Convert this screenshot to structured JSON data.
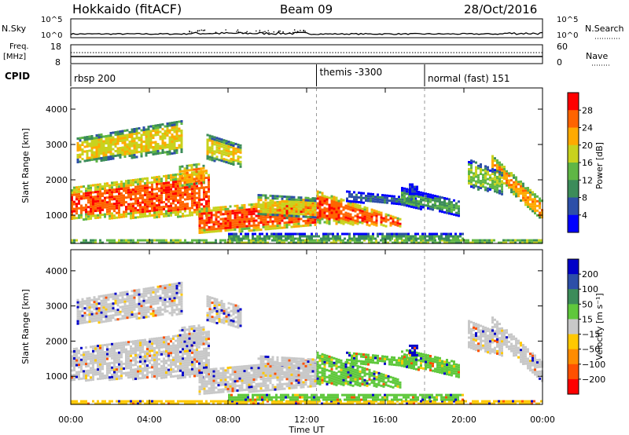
{
  "header": {
    "station": "Hokkaido (fitACF)",
    "beam": "Beam 09",
    "date": "28/Oct/2016"
  },
  "noise_panel": {
    "left_label": "N.Sky",
    "right_label": "N.Search",
    "left_ticks": [
      "10^5",
      "10^0"
    ],
    "right_ticks": [
      "10^5",
      "10^0"
    ]
  },
  "freq_panel": {
    "left_label_line1": "Freq.",
    "left_label_line2": "[MHz]",
    "right_label": "Nave",
    "left_ticks": [
      "18",
      "8"
    ],
    "right_ticks": [
      "60",
      "0"
    ]
  },
  "cpid_panel": {
    "label": "CPID",
    "segments": [
      {
        "start_hour": 0.0,
        "text": "rbsp 200"
      },
      {
        "start_hour": 12.5,
        "text": "themis -3300"
      },
      {
        "start_hour": 18.0,
        "text": "normal (fast) 151"
      }
    ]
  },
  "chart_data": [
    {
      "type": "heatmap",
      "name": "power-panel",
      "ylabel": "Slant Range [km]",
      "xlabel": "",
      "xlim": [
        0,
        24
      ],
      "ylim": [
        200,
        4600
      ],
      "yticks": [
        1000,
        2000,
        3000,
        4000
      ],
      "colorbar": {
        "label": "Power [dB]",
        "tick_labels": [
          "4",
          "8",
          "12",
          "16",
          "20",
          "24",
          "28"
        ],
        "colors": [
          "#0000ff",
          "#2d4fa8",
          "#3c8c5a",
          "#5fb645",
          "#c8d21e",
          "#ffaa00",
          "#ff6400",
          "#ff0000"
        ]
      }
    },
    {
      "type": "heatmap",
      "name": "velocity-panel",
      "ylabel": "Slant Range [km]",
      "xlabel": "Time UT",
      "xlim": [
        0,
        24
      ],
      "ylim": [
        200,
        4600
      ],
      "yticks": [
        1000,
        2000,
        3000,
        4000
      ],
      "xtick_labels": [
        "00:00",
        "04:00",
        "08:00",
        "12:00",
        "16:00",
        "20:00",
        "00:00"
      ],
      "colorbar": {
        "label": "Velocity [m s⁻¹]",
        "tick_labels": [
          "200",
          "100",
          "50",
          "15",
          "−15",
          "−50",
          "−100",
          "−200"
        ],
        "colors": [
          "#0000c8",
          "#2d4fa8",
          "#3c8c5a",
          "#5fc83c",
          "#c8c8c8",
          "#ffc800",
          "#ff8c00",
          "#ff5000",
          "#ff0000"
        ]
      }
    }
  ]
}
